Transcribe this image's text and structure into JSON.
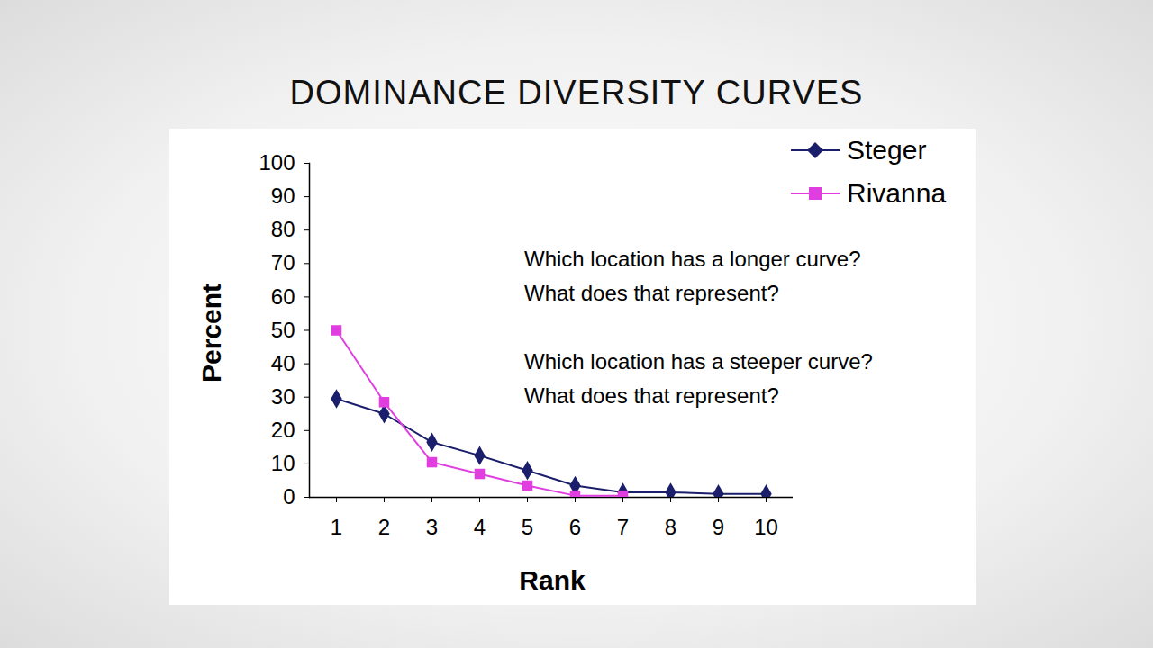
{
  "chart_data": {
    "type": "line",
    "title": "DOMINANCE DIVERSITY CURVES",
    "x_label": "Rank",
    "y_label": "Percent",
    "categories": [
      "1",
      "2",
      "3",
      "4",
      "5",
      "6",
      "7",
      "8",
      "9",
      "10"
    ],
    "series": [
      {
        "name": "Steger",
        "color": "#1b1f6b",
        "marker": "diamond",
        "values": [
          29.5,
          25,
          16.5,
          12.5,
          8,
          3.5,
          1.5,
          1.5,
          1,
          1
        ]
      },
      {
        "name": "Rivanna",
        "color": "#e03ee0",
        "marker": "square",
        "values": [
          50,
          28.5,
          10.5,
          7,
          3.5,
          0.5,
          0.5,
          null,
          null,
          null
        ]
      }
    ],
    "ylim": [
      0,
      100
    ],
    "yticks": [
      0,
      10,
      20,
      30,
      40,
      50,
      60,
      70,
      80,
      90,
      100
    ],
    "grid": false,
    "legend": "top-right",
    "annotations": [
      "Which location has a longer curve?",
      "What does that represent?",
      "Which location has a steeper curve?",
      "What does that represent?"
    ]
  }
}
